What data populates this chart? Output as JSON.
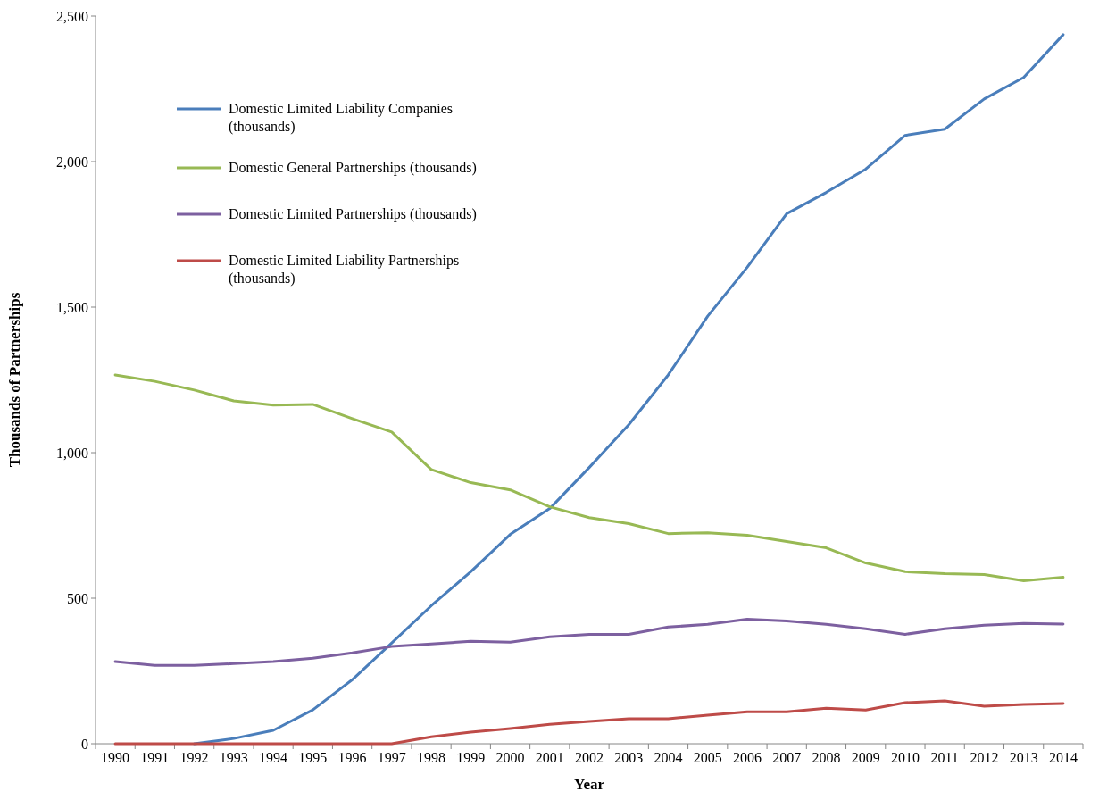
{
  "chart_data": {
    "type": "line",
    "xlabel": "Year",
    "ylabel": "Thousands of Partnerships",
    "categories": [
      "1990",
      "1991",
      "1992",
      "1993",
      "1994",
      "1995",
      "1996",
      "1997",
      "1998",
      "1999",
      "2000",
      "2001",
      "2002",
      "2003",
      "2004",
      "2005",
      "2006",
      "2007",
      "2008",
      "2009",
      "2010",
      "2011",
      "2012",
      "2013",
      "2014"
    ],
    "series": [
      {
        "name": "Domestic Limited Liability Companies (thousands)",
        "color": "#4a7ebb",
        "values": [
          null,
          null,
          0,
          18,
          46,
          116,
          220,
          346,
          474,
          591,
          719,
          808,
          949,
          1096,
          1267,
          1469,
          1637,
          1821,
          1894,
          1974,
          2090,
          2111,
          2215,
          2289,
          2436
        ]
      },
      {
        "name": "Domestic General Partnerships (thousands)",
        "color": "#98b954",
        "values": [
          1267,
          1245,
          1215,
          1178,
          1163,
          1166,
          1117,
          1071,
          942,
          897,
          872,
          814,
          777,
          756,
          722,
          725,
          716,
          695,
          673,
          621,
          591,
          584,
          581,
          560,
          572
        ]
      },
      {
        "name": "Domestic Limited Partnerships (thousands)",
        "color": "#7d60a0",
        "values": [
          282,
          269,
          269,
          275,
          282,
          294,
          312,
          334,
          343,
          352,
          349,
          367,
          376,
          376,
          401,
          410,
          428,
          422,
          410,
          395,
          376,
          395,
          407,
          413,
          411
        ]
      },
      {
        "name": "Domestic Limited Liability Partnerships (thousands)",
        "color": "#be4b48",
        "values": [
          0,
          0,
          0,
          0,
          0,
          0,
          0,
          0,
          24,
          40,
          52,
          67,
          77,
          86,
          86,
          98,
          110,
          110,
          122,
          116,
          141,
          147,
          129,
          135,
          138
        ]
      }
    ],
    "ylim": [
      0,
      2500
    ],
    "yticks": [
      {
        "value": 0,
        "label": "0"
      },
      {
        "value": 500,
        "label": "500"
      },
      {
        "value": 1000,
        "label": "1,000"
      },
      {
        "value": 1500,
        "label": "1,500"
      },
      {
        "value": 2000,
        "label": "2,000"
      },
      {
        "value": 2500,
        "label": "2,500"
      }
    ],
    "legend": "top left",
    "grid": false,
    "marker": "none",
    "line_style": "solid"
  }
}
